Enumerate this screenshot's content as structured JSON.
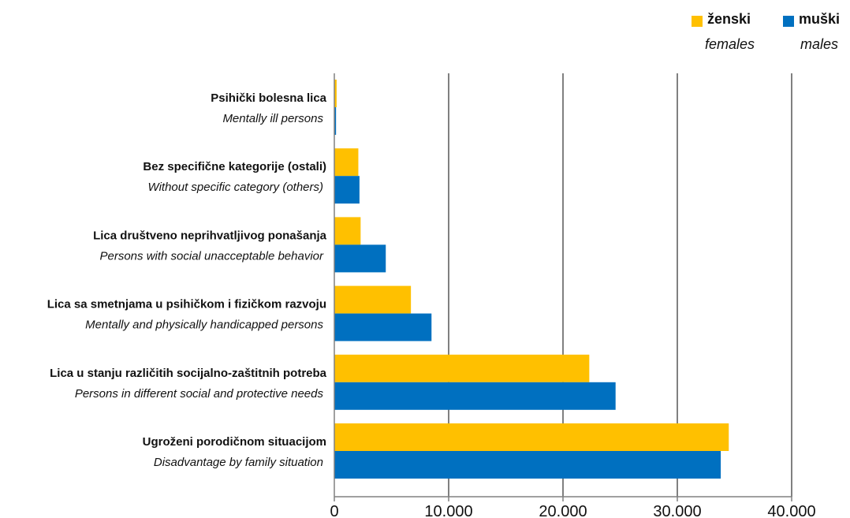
{
  "colors": {
    "females": "#FFC000",
    "males": "#0070C0",
    "grid": "#808080",
    "axis": "#808080"
  },
  "legend": {
    "females": {
      "label": "ženski",
      "sublabel": "females"
    },
    "males": {
      "label": "muški",
      "sublabel": "males"
    }
  },
  "chart_data": {
    "type": "bar",
    "orientation": "horizontal",
    "categories": [
      {
        "label": "Psihički bolesna lica",
        "sublabel": "Mentally ill persons"
      },
      {
        "label": "Bez specifične kategorije (ostali)",
        "sublabel": "Without specific category (others)"
      },
      {
        "label": "Lica društveno neprihvatljivog ponašanja",
        "sublabel": "Persons with social unacceptable behavior"
      },
      {
        "label": "Lica sa smetnjama u psihičkom i fizičkom razvoju",
        "sublabel": "Mentally and physically handicapped persons"
      },
      {
        "label": "Lica u stanju različitih socijalno-zaštitnih potreba",
        "sublabel": "Persons in different social and protective needs"
      },
      {
        "label": "Ugroženi porodičnom situacijom",
        "sublabel": "Disadvantage by family situation"
      }
    ],
    "series": [
      {
        "name": "ženski",
        "subname": "females",
        "color_key": "females",
        "values": [
          200,
          2100,
          2300,
          6700,
          22300,
          34500
        ]
      },
      {
        "name": "muški",
        "subname": "males",
        "color_key": "males",
        "values": [
          150,
          2200,
          4500,
          8500,
          24600,
          33800
        ]
      }
    ],
    "x_ticks": [
      0,
      10000,
      20000,
      30000,
      40000
    ],
    "x_tick_labels": [
      "0",
      "10.000",
      "20.000",
      "30.000",
      "40.000"
    ],
    "xlim": [
      0,
      40000
    ],
    "grid": true,
    "legend_position": "top-right"
  }
}
